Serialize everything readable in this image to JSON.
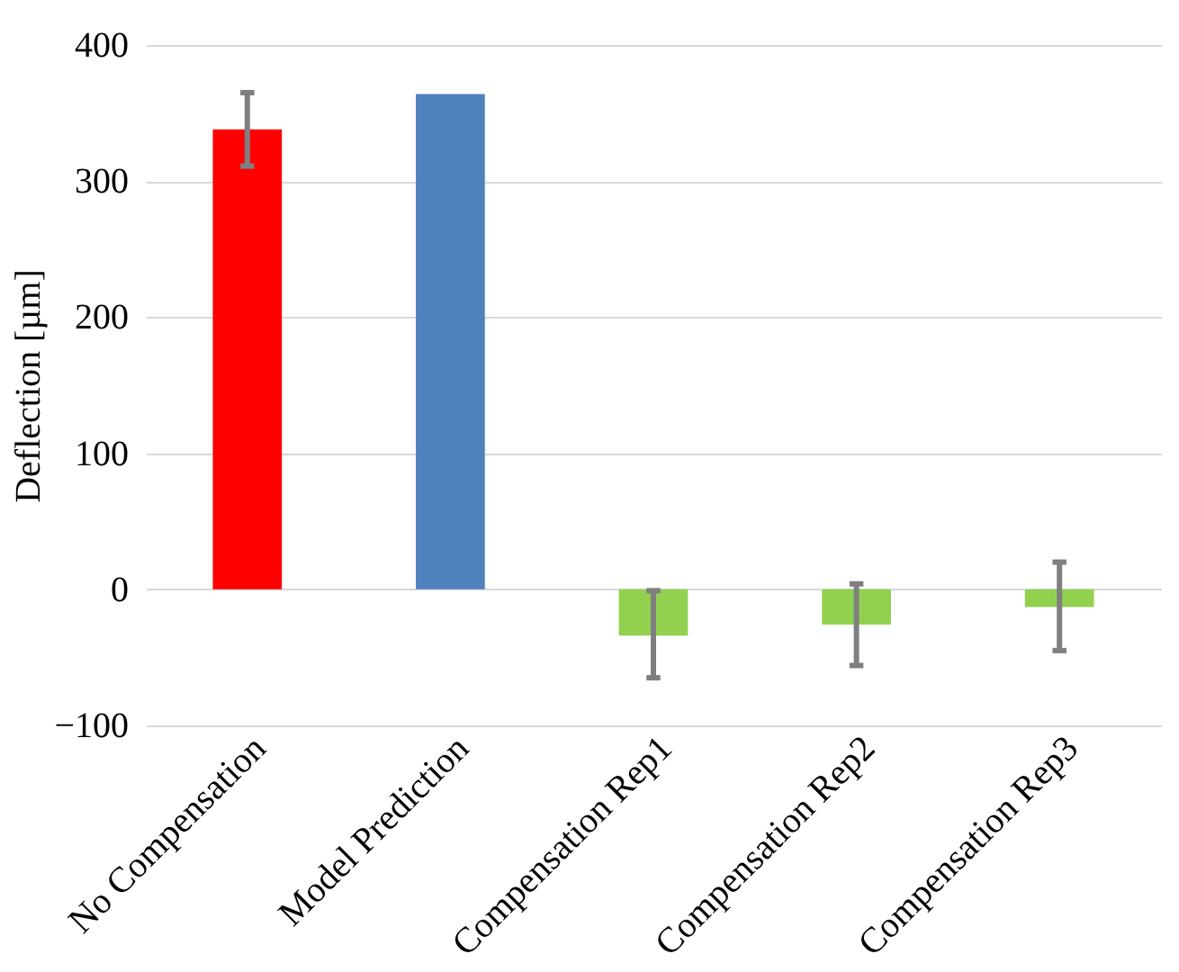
{
  "chart_data": {
    "type": "bar",
    "ylabel": "Deflection [µm]",
    "categories": [
      "No Compensation",
      "Model Prediction",
      "Compensation Rep1",
      "Compensation Rep2",
      "Compensation Rep3"
    ],
    "values": [
      338,
      364,
      -34,
      -26,
      -13
    ],
    "colors": [
      "#ff0000",
      "#4f81bd",
      "#92d050",
      "#92d050",
      "#92d050"
    ],
    "errors": [
      [
        311,
        365
      ],
      null,
      [
        -65,
        -1
      ],
      [
        -56,
        4
      ],
      [
        -45,
        20
      ]
    ],
    "ylim": [
      -100,
      400
    ],
    "yticks": [
      -100,
      0,
      100,
      200,
      300,
      400
    ],
    "grid": "y"
  }
}
